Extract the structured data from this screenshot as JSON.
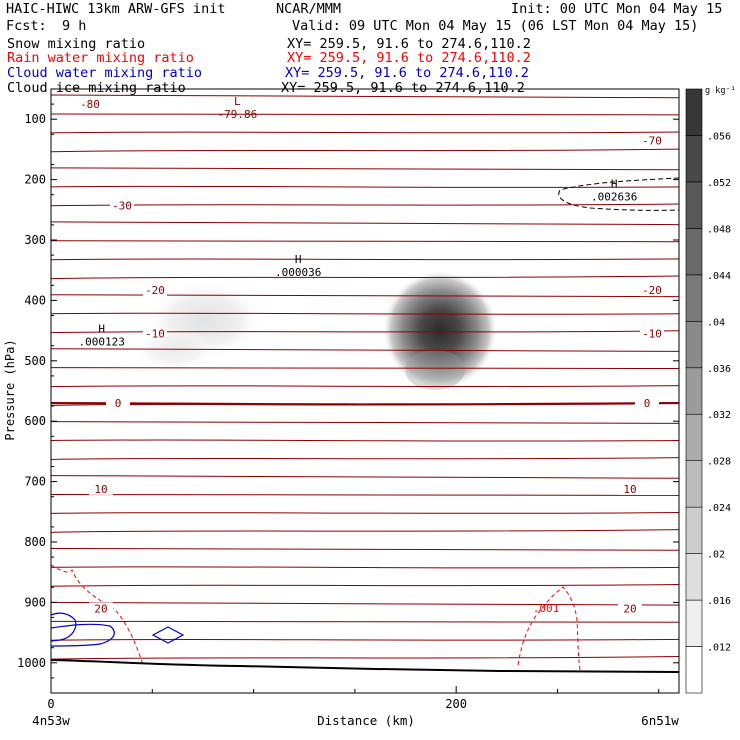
{
  "header": {
    "title_left": "HAIC-HIWC 13km ARW-GFS init",
    "center": "NCAR/MMM",
    "init": "Init: 00 UTC Mon 04 May 15",
    "fcst_label": "Fcst:",
    "fcst_value": "9 h",
    "valid": "Valid: 09 UTC Mon 04 May 15 (06 LST Mon 04 May 15)"
  },
  "fields": [
    {
      "name": "Snow mixing ratio",
      "xy": "XY= 259.5, 91.6 to 274.6,110.2",
      "color": "#000000"
    },
    {
      "name": "Rain water mixing ratio",
      "xy": "XY= 259.5, 91.6 to 274.6,110.2",
      "color": "#ff0000"
    },
    {
      "name": "Cloud water mixing ratio",
      "xy": "XY= 259.5, 91.6 to 274.6,110.2",
      "color": "#0000cc"
    },
    {
      "name": "Cloud ice mixing ratio",
      "xy": "XY= 259.5, 91.6 to 274.6,110.2",
      "color": "#000000"
    }
  ],
  "colors": {
    "isotherm": "#8b0000",
    "rain": "#ff0000",
    "cloud_water": "#0000cc",
    "ground": "#000000"
  },
  "chart_data": {
    "type": "cross-section",
    "xlabel": "Distance (km)",
    "ylabel": "Pressure (hPa)",
    "x_ticks": [
      0,
      200
    ],
    "y_ticks": [
      100,
      200,
      300,
      400,
      500,
      600,
      700,
      800,
      900,
      1000
    ],
    "xlim": [
      0,
      310
    ],
    "ylim": [
      1050,
      50
    ],
    "start_label": "4n53w",
    "end_label": "6n51w",
    "colorbar": {
      "unit": "g kg⁻¹",
      "ticks": [
        ".012",
        ".016",
        ".02",
        ".024",
        ".028",
        ".032",
        ".036",
        ".04",
        ".044",
        ".048",
        ".052",
        ".056"
      ],
      "min": 0.008,
      "max": 0.06
    },
    "isotherms": [
      {
        "label": "-80",
        "p": 75
      },
      {
        "label": "-70",
        "p": 135
      },
      {
        "label": "-30",
        "p": 243
      },
      {
        "label": "-20",
        "p": 383
      },
      {
        "label": "-10",
        "p": 455
      },
      {
        "label": "0",
        "p": 570
      },
      {
        "label": "10",
        "p": 712
      },
      {
        "label": "20",
        "p": 910
      }
    ],
    "extrema": [
      {
        "mark": "L",
        "value": "-79.86",
        "x": 92,
        "p": 93
      },
      {
        "mark": "H",
        "value": ".002636",
        "x": 278,
        "p": 230
      },
      {
        "mark": "H",
        "value": ".000036",
        "x": 122,
        "p": 355
      },
      {
        "mark": "H",
        "value": ".000123",
        "x": 25,
        "p": 470
      }
    ],
    "rain_contour_label": ".001",
    "shading": [
      {
        "x": 190,
        "p": 445,
        "max": 0.058
      },
      {
        "x": 78,
        "p": 410,
        "max": 0.011
      }
    ]
  }
}
